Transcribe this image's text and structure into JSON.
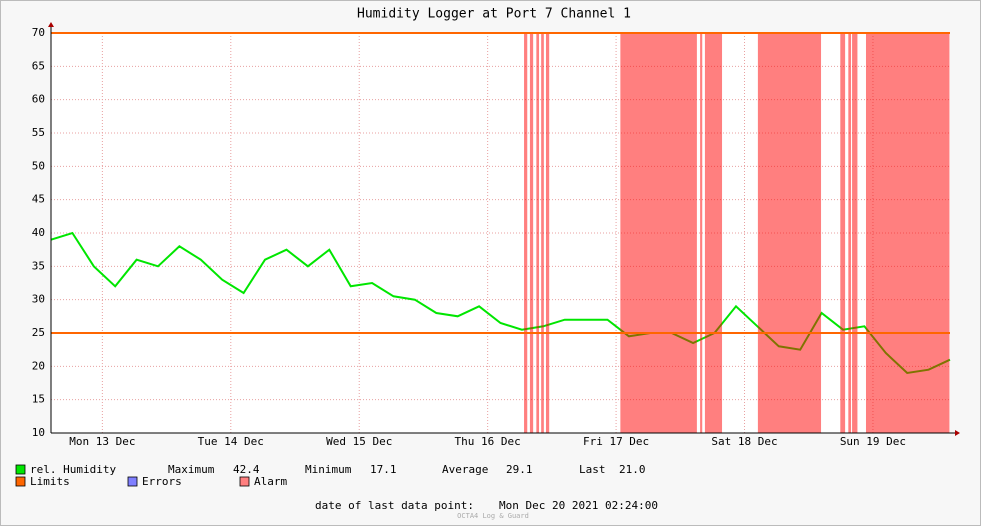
{
  "chart_data": {
    "type": "line",
    "title": "Humidity Logger at Port 7 Channel 1",
    "x": [
      0,
      4,
      8,
      12,
      16,
      20,
      24,
      28,
      32,
      36,
      40,
      44,
      48,
      52,
      56,
      60,
      64,
      68,
      72,
      76,
      80,
      84,
      88,
      92,
      96,
      100,
      104,
      108,
      112,
      116,
      120,
      124,
      128,
      132,
      136,
      140,
      144,
      148,
      152,
      156,
      160,
      164,
      168
    ],
    "series": [
      {
        "name": "rel. Humidity",
        "color": "#00e600",
        "values": [
          39,
          40,
          35,
          32,
          36,
          35,
          38,
          36,
          33,
          31,
          36,
          37.5,
          35,
          37.5,
          32,
          32.5,
          30.5,
          30,
          28,
          27.5,
          29,
          26.5,
          25.5,
          26,
          27,
          27,
          27,
          24.5,
          25,
          25,
          23.5,
          25,
          29,
          26,
          23,
          22.5,
          28,
          25.5,
          26,
          22,
          19,
          19.5,
          21
        ]
      }
    ],
    "limits": {
      "name": "Limits",
      "color": "#ff6600",
      "values": [
        25,
        70
      ]
    },
    "errors": {
      "name": "Errors",
      "color": "#7f7fff"
    },
    "alarms": {
      "name": "Alarm",
      "color": "#ff0000",
      "legend_color": "#ff7f7f",
      "ranges": [
        [
          88.4,
          89.0
        ],
        [
          89.5,
          90.1
        ],
        [
          90.7,
          91.2
        ],
        [
          91.6,
          92.1
        ],
        [
          92.5,
          93.1
        ],
        [
          106.4,
          120.7
        ],
        [
          121.3,
          121.7
        ],
        [
          122.2,
          125.4
        ],
        [
          132.1,
          143.9
        ],
        [
          147.5,
          148.4
        ],
        [
          149.0,
          149.5
        ],
        [
          149.7,
          150.7
        ],
        [
          152.3,
          167.9
        ]
      ]
    },
    "xlim": [
      0,
      168
    ],
    "xticks": [
      {
        "value": 9.6,
        "label": "Mon 13 Dec"
      },
      {
        "value": 33.6,
        "label": "Tue 14 Dec"
      },
      {
        "value": 57.6,
        "label": "Wed 15 Dec"
      },
      {
        "value": 81.6,
        "label": "Thu 16 Dec"
      },
      {
        "value": 105.6,
        "label": "Fri 17 Dec"
      },
      {
        "value": 129.6,
        "label": "Sat 18 Dec"
      },
      {
        "value": 153.6,
        "label": "Sun 19 Dec"
      }
    ],
    "ylim": [
      10,
      70
    ],
    "yticks": [
      10,
      15,
      20,
      25,
      30,
      35,
      40,
      45,
      50,
      55,
      60,
      65,
      70
    ],
    "grid": true,
    "stats": [
      {
        "label": "Maximum",
        "value": "42.4"
      },
      {
        "label": "Minimum",
        "value": "17.1"
      },
      {
        "label": "Average",
        "value": "29.1"
      },
      {
        "label": "Last",
        "value": "21.0"
      }
    ],
    "footer": {
      "label": "date of last data point:",
      "value": "Mon Dec 20 2021 02:24:00"
    },
    "watermark": "OCTA4 Log & Guard"
  }
}
